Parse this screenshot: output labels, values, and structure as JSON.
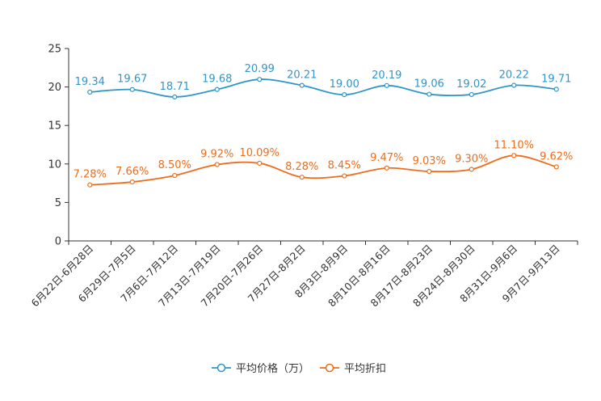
{
  "chart_data": {
    "type": "line",
    "title": "",
    "xlabel": "",
    "ylabel": "",
    "ylim": [
      0,
      25
    ],
    "yticks": [
      0,
      5,
      10,
      15,
      20,
      25
    ],
    "grid": false,
    "legend_position": "bottom-center",
    "categories": [
      "6月22日-6月28日",
      "6月29日-7月5日",
      "7月6日-7月12日",
      "7月13日-7月19日",
      "7月20日-7月26日",
      "7月27日-8月2日",
      "8月3日-8月9日",
      "8月10日-8月16日",
      "8月17日-8月23日",
      "8月24日-8月30日",
      "8月31日-9月6日",
      "9月7日-9月13日"
    ],
    "series": [
      {
        "name": "平均价格（万）",
        "color": "#2e96c9",
        "values": [
          19.34,
          19.67,
          18.71,
          19.68,
          20.99,
          20.21,
          19.0,
          20.19,
          19.06,
          19.02,
          20.22,
          19.71
        ],
        "labels": [
          "19.34",
          "19.67",
          "18.71",
          "19.68",
          "20.99",
          "20.21",
          "19.00",
          "20.19",
          "19.06",
          "19.02",
          "20.22",
          "19.71"
        ]
      },
      {
        "name": "平均折扣",
        "color": "#ee6d1b",
        "values": [
          7.28,
          7.66,
          8.5,
          9.92,
          10.09,
          8.28,
          8.45,
          9.47,
          9.03,
          9.3,
          11.1,
          9.62
        ],
        "labels": [
          "7.28%",
          "7.66%",
          "8.50%",
          "9.92%",
          "10.09%",
          "8.28%",
          "8.45%",
          "9.47%",
          "9.03%",
          "9.30%",
          "11.10%",
          "9.62%"
        ]
      }
    ]
  }
}
